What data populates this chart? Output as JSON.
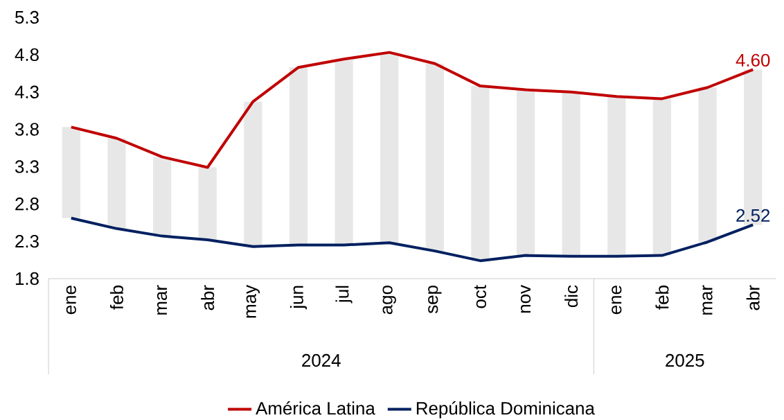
{
  "chart_data": {
    "type": "line",
    "categories": [
      "ene",
      "feb",
      "mar",
      "abr",
      "may",
      "jun",
      "jul",
      "ago",
      "sep",
      "oct",
      "nov",
      "dic",
      "ene",
      "feb",
      "mar",
      "abr"
    ],
    "series": [
      {
        "type": "bar",
        "color": "#e7e7e7",
        "base": [
          2.61,
          2.47,
          2.37,
          2.32,
          2.23,
          2.25,
          2.25,
          2.28,
          2.17,
          2.04,
          2.11,
          2.1,
          2.1,
          2.11,
          2.29,
          2.52
        ],
        "values": [
          1.22,
          1.21,
          1.06,
          0.97,
          1.94,
          2.38,
          2.49,
          2.55,
          2.51,
          2.34,
          2.22,
          2.2,
          2.14,
          2.1,
          2.07,
          2.08
        ]
      },
      {
        "name": "América Latina",
        "color": "#c00000",
        "values": [
          3.83,
          3.68,
          3.43,
          3.29,
          4.17,
          4.63,
          4.74,
          4.83,
          4.68,
          4.38,
          4.33,
          4.3,
          4.24,
          4.21,
          4.36,
          4.6
        ],
        "value_labels": [
          null,
          null,
          null,
          null,
          null,
          null,
          null,
          null,
          null,
          null,
          null,
          null,
          null,
          null,
          null,
          "4.60"
        ]
      },
      {
        "name": "República Dominicana",
        "color": "#002060",
        "values": [
          2.61,
          2.47,
          2.37,
          2.32,
          2.23,
          2.25,
          2.25,
          2.28,
          2.17,
          2.04,
          2.11,
          2.1,
          2.1,
          2.11,
          2.29,
          2.52
        ],
        "value_labels": [
          null,
          null,
          null,
          null,
          null,
          null,
          null,
          null,
          null,
          null,
          null,
          null,
          null,
          null,
          null,
          "2.52"
        ]
      }
    ],
    "annotations": [
      "2024",
      "2025"
    ],
    "ylim": [
      1.8,
      5.3
    ],
    "yticks": [
      1.8,
      2.3,
      2.8,
      3.3,
      3.8,
      4.3,
      4.8,
      5.3
    ],
    "grid": false,
    "legend": "bottom",
    "marker": "none"
  }
}
